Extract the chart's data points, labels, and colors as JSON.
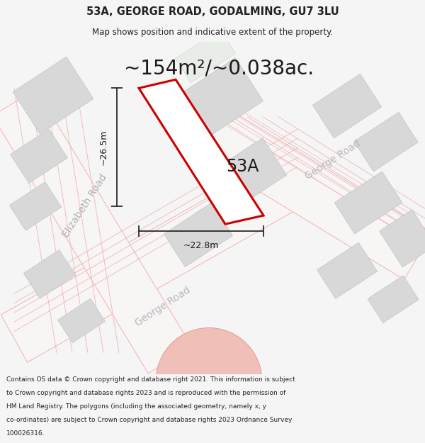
{
  "title_line1": "53A, GEORGE ROAD, GODALMING, GU7 3LU",
  "title_line2": "Map shows position and indicative extent of the property.",
  "area_text": "~154m²/~0.038ac.",
  "label_53a": "53A",
  "dim_width": "~22.8m",
  "dim_height": "~26.5m",
  "road_label_elizabeth": "Elizabeth Road",
  "road_label_george_bottom": "George Road",
  "road_label_george_right": "George Road",
  "footer_text": "Contains OS data © Crown copyright and database right 2021. This information is subject to Crown copyright and database rights 2023 and is reproduced with the permission of HM Land Registry. The polygons (including the associated geometry, namely x, y co-ordinates) are subject to Crown copyright and database rights 2023 Ordnance Survey 100026316.",
  "bg_color": "#f5f5f5",
  "map_bg": "#efefef",
  "plot_color_red": "#cc0000",
  "plot_fill": "#ffffff",
  "building_fill": "#dcdcdc",
  "building_stroke": "#c8c8c8",
  "road_line_color": "#f0a0a0",
  "dim_color": "#1a1a1a",
  "road_band_color": "#f5f0f0",
  "road_band_ec": "#f0b0b0"
}
